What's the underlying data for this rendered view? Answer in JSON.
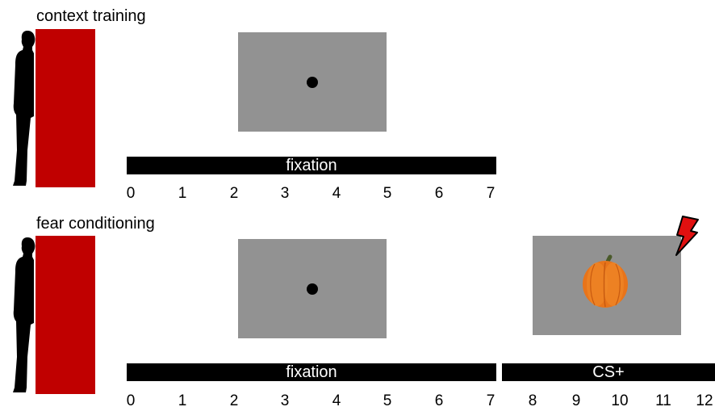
{
  "sections": [
    {
      "title": "context training",
      "bar_label": "fixation",
      "ticks": [
        "0",
        "1",
        "2",
        "3",
        "4",
        "5",
        "6",
        "7"
      ]
    },
    {
      "title": "fear conditioning",
      "bar_labels": [
        "fixation",
        "CS+"
      ],
      "ticks": [
        "0",
        "1",
        "2",
        "3",
        "4",
        "5",
        "6",
        "7",
        "8",
        "9",
        "10",
        "11",
        "12"
      ]
    }
  ],
  "colors": {
    "context_red": "#c00000",
    "screen_gray": "#929292",
    "bar_black": "#000000",
    "shock_red": "#e01010"
  },
  "icons": [
    "person-silhouette-icon",
    "fixation-dot-icon",
    "pumpkin-icon",
    "lightning-bolt-icon"
  ]
}
